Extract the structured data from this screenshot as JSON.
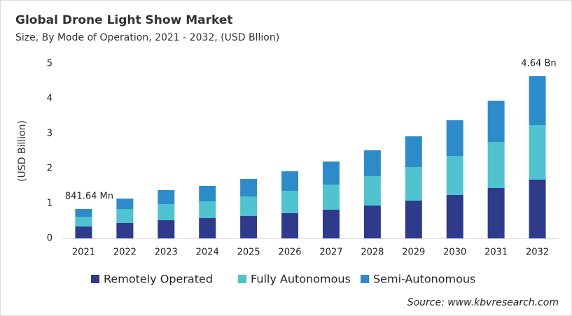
{
  "chart_data": {
    "type": "stacked_bar",
    "title": "Global Drone Light Show Market",
    "subtitle": "Size, By Mode of Operation, 2021 - 2032, (USD Bllion)",
    "y_label": "(USD Billion)",
    "source": "Source: www.kbvresearch.com",
    "annotations": [
      "841.64  Mn",
      "4.64 Bn"
    ],
    "categories": [
      "2021",
      "2022",
      "2023",
      "2024",
      "2025",
      "2026",
      "2027",
      "2028",
      "2029",
      "2030",
      "2031",
      "2032"
    ],
    "series": [
      {
        "name": "Remotely Operated",
        "color": "#2e3a8c",
        "values": [
          0.34,
          0.44,
          0.52,
          0.58,
          0.64,
          0.72,
          0.82,
          0.94,
          1.08,
          1.24,
          1.44,
          1.68
        ]
      },
      {
        "name": "Fully Autonomous",
        "color": "#4fc3d0",
        "values": [
          0.28,
          0.4,
          0.46,
          0.48,
          0.56,
          0.64,
          0.72,
          0.84,
          0.96,
          1.12,
          1.32,
          1.56
        ]
      },
      {
        "name": "Semi-Autonomous",
        "color": "#2e8bc9",
        "values": [
          0.22,
          0.3,
          0.4,
          0.44,
          0.5,
          0.56,
          0.66,
          0.74,
          0.88,
          1.02,
          1.18,
          1.4
        ]
      }
    ],
    "ylim": [
      0,
      5
    ],
    "yticks": [
      0,
      1,
      2,
      3,
      4,
      5
    ],
    "grid": false,
    "legend": "bottom"
  }
}
